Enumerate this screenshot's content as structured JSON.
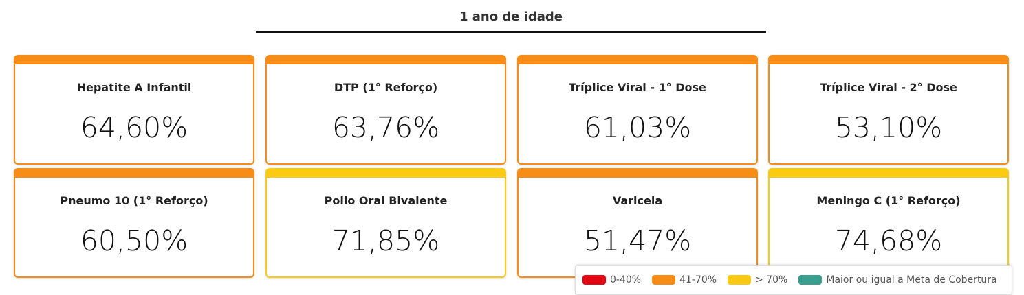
{
  "header": {
    "title": "1 ano de idade"
  },
  "cards": [
    {
      "label": "Hepatite A Infantil",
      "value": "64,60%",
      "color": "#f78c16"
    },
    {
      "label": "DTP (1° Reforço)",
      "value": "63,76%",
      "color": "#f78c16"
    },
    {
      "label": "Tríplice Viral - 1° Dose",
      "value": "61,03%",
      "color": "#f78c16"
    },
    {
      "label": "Tríplice Viral - 2° Dose",
      "value": "53,10%",
      "color": "#f78c16"
    },
    {
      "label": "Pneumo 10 (1° Reforço)",
      "value": "60,50%",
      "color": "#f78c16"
    },
    {
      "label": "Polio Oral Bivalente",
      "value": "71,85%",
      "color": "#fbcb14"
    },
    {
      "label": "Varicela",
      "value": "51,47%",
      "color": "#f78c16"
    },
    {
      "label": "Meningo C (1° Reforço)",
      "value": "74,68%",
      "color": "#fbcb14"
    }
  ],
  "legend": [
    {
      "label": "0-40%",
      "color": "#e30613"
    },
    {
      "label": "41-70%",
      "color": "#f78c16"
    },
    {
      "label": "> 70%",
      "color": "#fbcb14"
    },
    {
      "label": "Maior ou igual a Meta de Cobertura",
      "color": "#3a9e8f"
    }
  ]
}
